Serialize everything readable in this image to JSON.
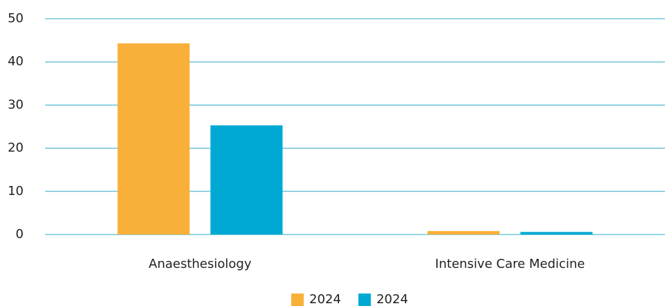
{
  "chart_data": {
    "type": "bar",
    "categories": [
      "Anaesthesiology",
      "Intensive Care Medicine"
    ],
    "series": [
      {
        "name": "2024",
        "color": "#f9b03a",
        "values": [
          44.3,
          0.8
        ]
      },
      {
        "name": "2024",
        "color": "#00a9d4",
        "values": [
          25.3,
          0.6
        ]
      }
    ],
    "ylim": [
      0,
      50
    ],
    "yticks": [
      0,
      10,
      20,
      30,
      40,
      50
    ],
    "grid": true,
    "legend": "bottom"
  }
}
